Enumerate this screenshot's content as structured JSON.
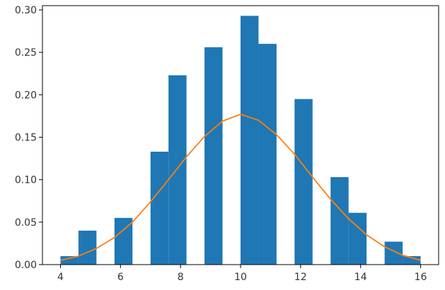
{
  "chart_data": {
    "type": "bar",
    "title": "",
    "xlabel": "",
    "ylabel": "",
    "xlim": [
      3.4,
      16.6
    ],
    "ylim": [
      0,
      0.305
    ],
    "grid": false,
    "legend": "none",
    "xticks": [
      4,
      6,
      8,
      10,
      12,
      14,
      16
    ],
    "xtick_labels": [
      "4",
      "6",
      "8",
      "10",
      "12",
      "14",
      "16"
    ],
    "yticks": [
      0,
      0.05,
      0.1,
      0.15,
      0.2,
      0.25,
      0.3
    ],
    "ytick_labels": [
      "0.00",
      "0.05",
      "0.10",
      "0.15",
      "0.20",
      "0.25",
      "0.30"
    ],
    "bar_color": "#1f77b4",
    "line_color": "#ff7f0e",
    "series": [
      {
        "kind": "histogram",
        "bins": [
          {
            "x0": 4.0,
            "x1": 4.6,
            "value": 0.01
          },
          {
            "x0": 4.6,
            "x1": 5.2,
            "value": 0.04
          },
          {
            "x0": 5.2,
            "x1": 5.8,
            "value": 0.0
          },
          {
            "x0": 5.8,
            "x1": 6.4,
            "value": 0.055
          },
          {
            "x0": 6.4,
            "x1": 7.0,
            "value": 0.0
          },
          {
            "x0": 7.0,
            "x1": 7.6,
            "value": 0.133
          },
          {
            "x0": 7.6,
            "x1": 8.2,
            "value": 0.223
          },
          {
            "x0": 8.2,
            "x1": 8.8,
            "value": 0.0
          },
          {
            "x0": 8.8,
            "x1": 9.4,
            "value": 0.256
          },
          {
            "x0": 9.4,
            "x1": 10.0,
            "value": 0.0
          },
          {
            "x0": 10.0,
            "x1": 10.6,
            "value": 0.293
          },
          {
            "x0": 10.6,
            "x1": 11.2,
            "value": 0.26
          },
          {
            "x0": 11.2,
            "x1": 11.8,
            "value": 0.0
          },
          {
            "x0": 11.8,
            "x1": 12.4,
            "value": 0.195
          },
          {
            "x0": 12.4,
            "x1": 13.0,
            "value": 0.0
          },
          {
            "x0": 13.0,
            "x1": 13.6,
            "value": 0.103
          },
          {
            "x0": 13.6,
            "x1": 14.2,
            "value": 0.061
          },
          {
            "x0": 14.2,
            "x1": 14.8,
            "value": 0.0
          },
          {
            "x0": 14.8,
            "x1": 15.4,
            "value": 0.027
          },
          {
            "x0": 15.4,
            "x1": 16.0,
            "value": 0.01
          }
        ]
      },
      {
        "kind": "line",
        "x": [
          4.0,
          4.6,
          5.2,
          5.8,
          6.4,
          7.0,
          7.6,
          8.2,
          8.8,
          9.4,
          10.0,
          10.6,
          11.2,
          11.8,
          12.4,
          13.0,
          13.6,
          14.2,
          14.8,
          15.4,
          16.0
        ],
        "y": [
          0.005,
          0.01,
          0.019,
          0.032,
          0.05,
          0.074,
          0.1,
          0.127,
          0.151,
          0.169,
          0.177,
          0.17,
          0.153,
          0.13,
          0.103,
          0.077,
          0.054,
          0.035,
          0.021,
          0.011,
          0.005
        ]
      }
    ]
  }
}
